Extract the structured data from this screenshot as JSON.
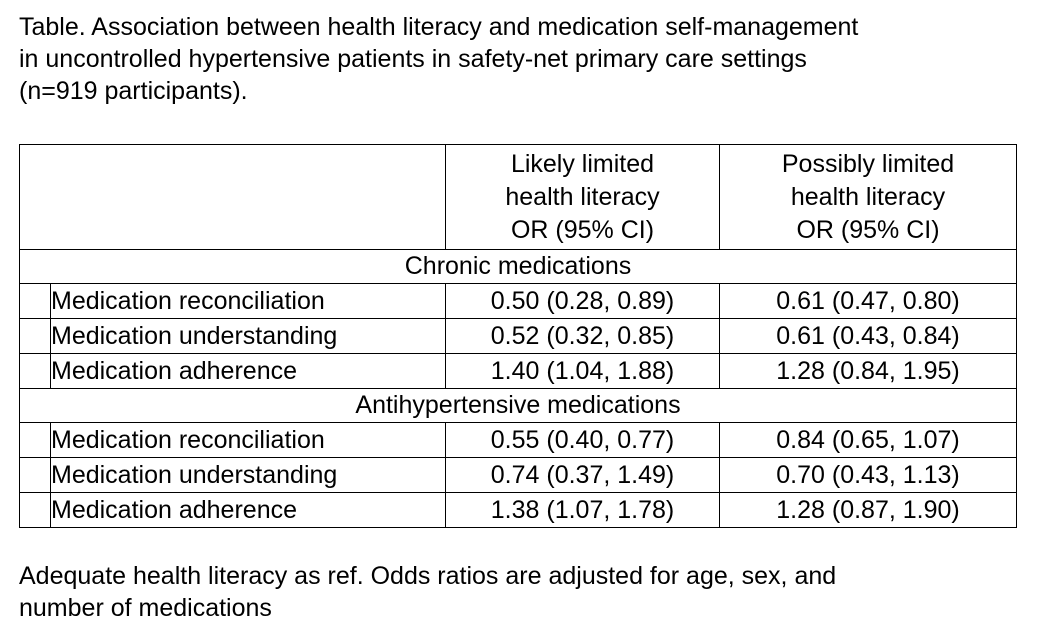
{
  "caption": {
    "line1": "Table. Association between health literacy and medication self-management",
    "line2": "in uncontrolled hypertensive patients in safety-net primary care settings",
    "line3": "(n=919 participants)."
  },
  "table": {
    "headers": {
      "likely_limited": [
        "Likely limited",
        "health literacy",
        "OR (95% CI)"
      ],
      "possibly_limited": [
        "Possibly limited",
        "health literacy",
        "OR (95% CI)"
      ]
    },
    "sections": [
      {
        "title": "Chronic medications",
        "rows": [
          {
            "label": "Medication reconciliation",
            "likely": "0.50 (0.28, 0.89)",
            "possibly": "0.61 (0.47, 0.80)"
          },
          {
            "label": "Medication understanding",
            "likely": "0.52 (0.32, 0.85)",
            "possibly": "0.61 (0.43, 0.84)"
          },
          {
            "label": "Medication adherence",
            "likely": "1.40 (1.04, 1.88)",
            "possibly": "1.28 (0.84, 1.95)"
          }
        ]
      },
      {
        "title": "Antihypertensive medications",
        "rows": [
          {
            "label": "Medication reconciliation",
            "likely": "0.55 (0.40, 0.77)",
            "possibly": "0.84 (0.65, 1.07)"
          },
          {
            "label": "Medication understanding",
            "likely": "0.74 (0.37, 1.49)",
            "possibly": "0.70 (0.43, 1.13)"
          },
          {
            "label": "Medication adherence",
            "likely": "1.38 (1.07, 1.78)",
            "possibly": "1.28 (0.87, 1.90)"
          }
        ]
      }
    ]
  },
  "footnote": {
    "line1": "Adequate health literacy as ref. Odds ratios are adjusted for age, sex, and",
    "line2": "number of medications"
  }
}
